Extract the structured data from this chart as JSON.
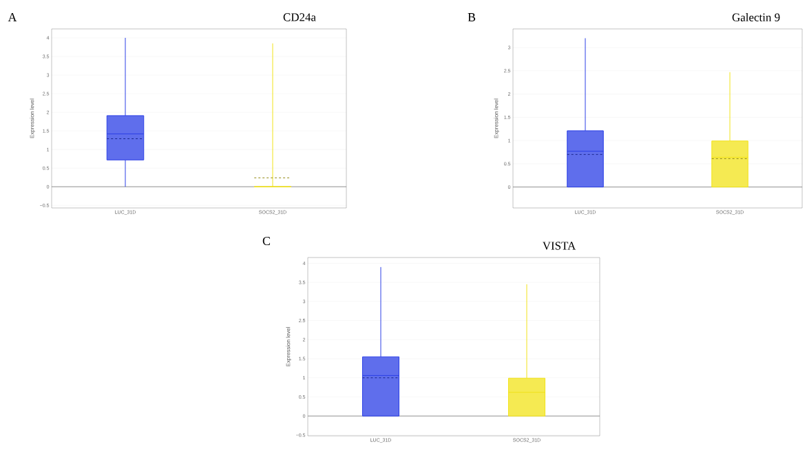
{
  "chart_data": [
    {
      "type": "box",
      "title": "CD24a",
      "annotations": [
        "A"
      ],
      "ylabel": "Expression level",
      "categories": [
        "LUC_31D",
        "SOCS2_31D"
      ],
      "colors": [
        "#2a3ee6",
        "#f2e318"
      ],
      "boxes": [
        {
          "low": 0,
          "q1": 0.72,
          "median": 1.42,
          "q3": 1.91,
          "high": 4.0,
          "mean": 1.29
        },
        {
          "low": 0,
          "q1": 0,
          "median": 0,
          "q3": 0,
          "high": 3.85,
          "mean": 0.24
        }
      ],
      "ylim": [
        -0.57,
        4.24
      ],
      "yticks": [
        {
          "value": -0.5,
          "label": "−0.5"
        },
        0,
        0.5,
        1,
        1.5,
        2,
        2.5,
        3,
        3.5,
        4
      ],
      "grid": "y",
      "ref_lines": [
        {
          "axis": "y",
          "value": 0,
          "color": "#777777"
        }
      ]
    },
    {
      "type": "box",
      "title": "Galectin 9",
      "annotations": [
        "B"
      ],
      "ylabel": "Expression level",
      "categories": [
        "LUC_31D",
        "SOCS2_31D"
      ],
      "colors": [
        "#2a3ee6",
        "#f2e318"
      ],
      "boxes": [
        {
          "low": 0,
          "q1": 0,
          "median": 0.77,
          "q3": 1.21,
          "high": 3.2,
          "mean": 0.7
        },
        {
          "low": 0,
          "q1": 0,
          "median": 0.64,
          "q3": 0.99,
          "high": 2.47,
          "mean": 0.61
        }
      ],
      "ylim": [
        -0.45,
        3.4
      ],
      "yticks": [
        0,
        0.5,
        1,
        1.5,
        2,
        2.5,
        3
      ],
      "grid": "y",
      "ref_lines": [
        {
          "axis": "y",
          "value": 0,
          "color": "#777777"
        }
      ]
    },
    {
      "type": "box",
      "title": "VISTA",
      "annotations": [
        "C"
      ],
      "ylabel": "Expression level",
      "categories": [
        "LUC_31D",
        "SOCS2_31D"
      ],
      "colors": [
        "#2a3ee6",
        "#f2e318"
      ],
      "boxes": [
        {
          "low": 0,
          "q1": 0,
          "median": 1.06,
          "q3": 1.55,
          "high": 3.9,
          "mean": 1.0
        },
        {
          "low": 0,
          "q1": 0,
          "median": 0.62,
          "q3": 0.99,
          "high": 3.45
        }
      ],
      "ylim": [
        -0.52,
        4.15
      ],
      "yticks": [
        {
          "value": -0.5,
          "label": "−0.5"
        },
        0,
        0.5,
        1,
        1.5,
        2,
        2.5,
        3,
        3.5,
        4
      ],
      "grid": "y",
      "ref_lines": [
        {
          "axis": "y",
          "value": 0,
          "color": "#777777"
        }
      ]
    }
  ]
}
